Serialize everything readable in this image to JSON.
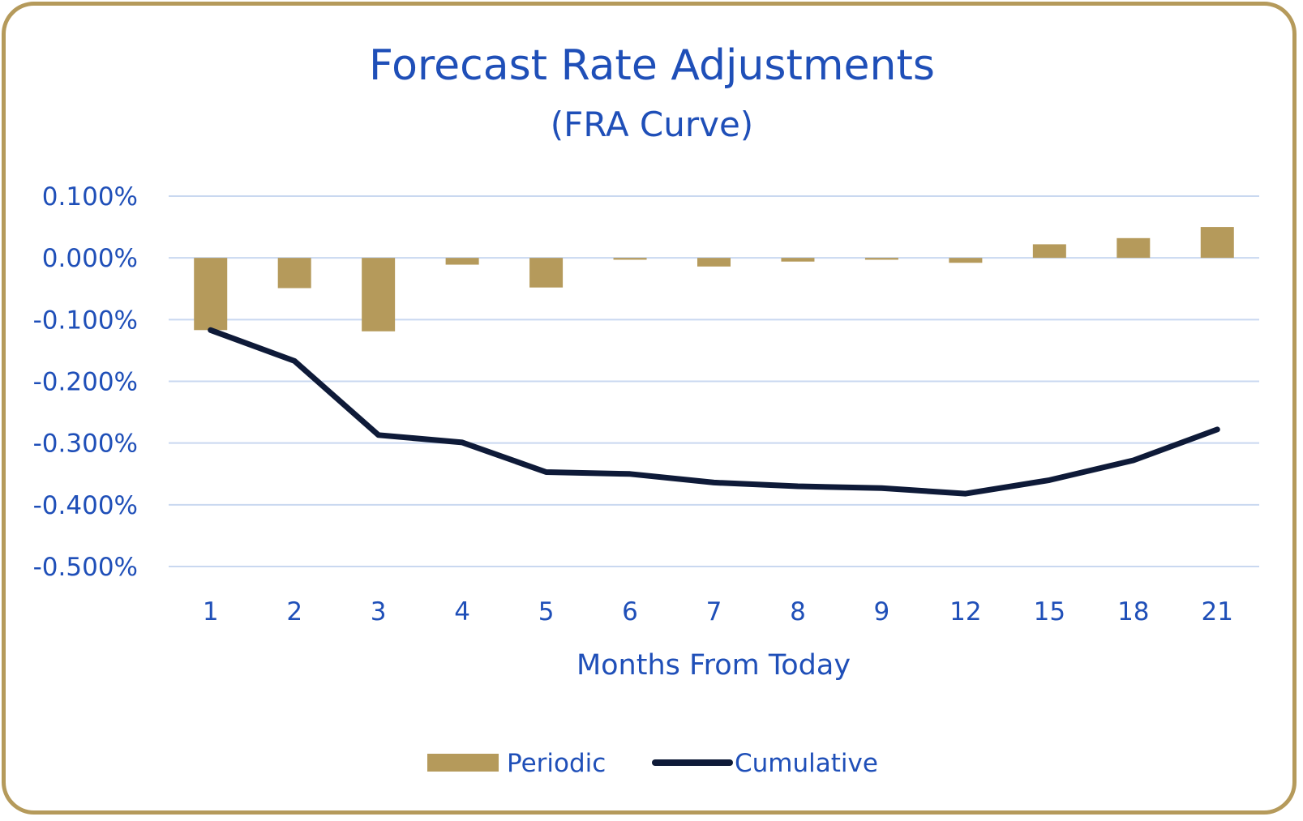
{
  "chart_data": {
    "type": "bar",
    "title": "Forecast Rate Adjustments",
    "subtitle": "(FRA Curve)",
    "xlabel": "Months From Today",
    "ylabel": "",
    "categories": [
      "1",
      "2",
      "3",
      "4",
      "5",
      "6",
      "7",
      "8",
      "9",
      "12",
      "15",
      "18",
      "21"
    ],
    "ylim": [
      -0.5,
      0.1
    ],
    "yticks": [
      0.1,
      0.0,
      -0.1,
      -0.2,
      -0.3,
      -0.4,
      -0.5
    ],
    "ytick_labels": [
      "0.100%",
      "0.000%",
      "-0.100%",
      "-0.200%",
      "-0.300%",
      "-0.400%",
      "-0.500%"
    ],
    "grid": true,
    "legend_position": "bottom",
    "series": [
      {
        "name": "Periodic",
        "type": "bar",
        "color": "#b59a5b",
        "values": [
          -0.117,
          -0.049,
          -0.119,
          -0.011,
          -0.048,
          -0.003,
          -0.014,
          -0.006,
          -0.003,
          -0.008,
          0.022,
          0.032,
          0.05
        ]
      },
      {
        "name": "Cumulative",
        "type": "line",
        "color": "#0e1a38",
        "values": [
          -0.117,
          -0.167,
          -0.287,
          -0.299,
          -0.347,
          -0.35,
          -0.364,
          -0.37,
          -0.373,
          -0.382,
          -0.36,
          -0.328,
          -0.278
        ]
      }
    ]
  },
  "colors": {
    "frame_border": "#b59a5b",
    "text": "#1f4fb8",
    "gridline": "#c9d8f0"
  }
}
